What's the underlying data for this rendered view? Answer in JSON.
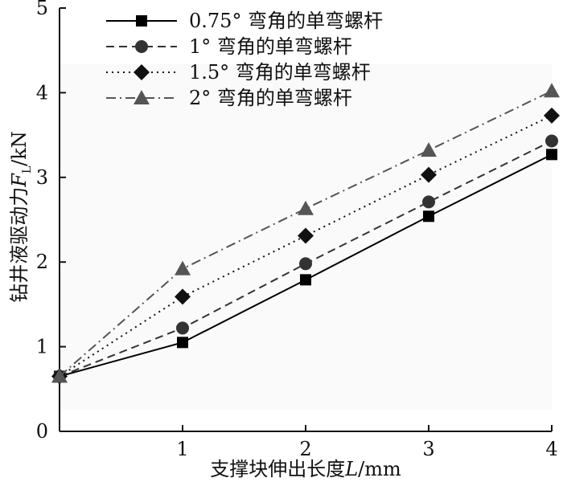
{
  "chart_data": {
    "type": "line",
    "x": [
      0,
      1,
      2,
      3,
      4
    ],
    "series": [
      {
        "name": "0.75° 弯角的单弯螺杆",
        "values": [
          0.65,
          1.05,
          1.79,
          2.54,
          3.27
        ],
        "marker": "square",
        "dash": "solid",
        "color": "#000000"
      },
      {
        "name": "1° 弯角的单弯螺杆",
        "values": [
          0.65,
          1.22,
          1.98,
          2.71,
          3.43
        ],
        "marker": "circle",
        "dash": "dashed",
        "color": "#333333"
      },
      {
        "name": "1.5° 弯角的单弯螺杆",
        "values": [
          0.65,
          1.59,
          2.31,
          3.03,
          3.73
        ],
        "marker": "diamond",
        "dash": "dotted",
        "color": "#111111"
      },
      {
        "name": "2° 弯角的单弯螺杆",
        "values": [
          0.65,
          1.92,
          2.63,
          3.32,
          4.02
        ],
        "marker": "triangle",
        "dash": "dashdot",
        "color": "#555555"
      }
    ],
    "xlim": [
      0,
      4
    ],
    "ylim": [
      0,
      5
    ],
    "x_ticks": [
      "1",
      "2",
      "3",
      "4"
    ],
    "y_ticks": [
      "0",
      "1",
      "2",
      "3",
      "4",
      "5"
    ],
    "xlabel": "支撑块伸出长度L/mm",
    "ylabel": "钻井液驱动力F_L/kN",
    "legend_position": "top-left",
    "grid": false
  }
}
